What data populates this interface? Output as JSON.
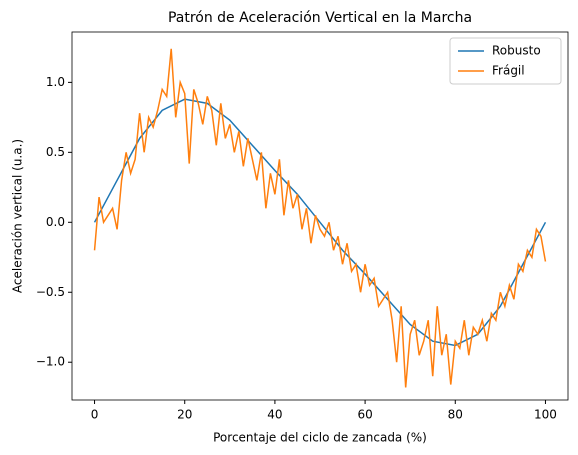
{
  "chart_data": {
    "type": "line",
    "title": "Patrón de Aceleración Vertical en la Marcha",
    "xlabel": "Porcentaje del ciclo de zancada (%)",
    "ylabel": "Aceleración vertical (u.a.)",
    "xlim": [
      -5,
      105
    ],
    "ylim": [
      -1.27,
      1.36
    ],
    "xticks": [
      0,
      20,
      40,
      60,
      80,
      100
    ],
    "yticks": [
      {
        "value": -1.0,
        "label": "−1.0"
      },
      {
        "value": -0.5,
        "label": "−0.5"
      },
      {
        "value": 0,
        "label": "0.0"
      },
      {
        "value": 0.5,
        "label": "0.5"
      },
      {
        "value": 1.0,
        "label": "1.0"
      }
    ],
    "legend": "upper right",
    "series": [
      {
        "name": "Robusto",
        "color": "#1f77b4",
        "x": [
          0,
          5,
          10,
          15,
          20,
          25,
          30,
          35,
          40,
          45,
          50,
          55,
          60,
          65,
          70,
          75,
          80,
          85,
          90,
          95,
          100
        ],
        "values": [
          0,
          0.3,
          0.6,
          0.8,
          0.88,
          0.85,
          0.73,
          0.55,
          0.37,
          0.2,
          0,
          -0.2,
          -0.37,
          -0.55,
          -0.73,
          -0.85,
          -0.88,
          -0.8,
          -0.6,
          -0.3,
          0
        ]
      },
      {
        "name": "Frágil",
        "color": "#ff7f0e",
        "x": [
          0,
          1,
          2,
          3,
          4,
          5,
          6,
          7,
          8,
          9,
          10,
          11,
          12,
          13,
          14,
          15,
          16,
          17,
          18,
          19,
          20,
          21,
          22,
          23,
          24,
          25,
          26,
          27,
          28,
          29,
          30,
          31,
          32,
          33,
          34,
          35,
          36,
          37,
          38,
          39,
          40,
          41,
          42,
          43,
          44,
          45,
          46,
          47,
          48,
          49,
          50,
          51,
          52,
          53,
          54,
          55,
          56,
          57,
          58,
          59,
          60,
          61,
          62,
          63,
          64,
          65,
          66,
          67,
          68,
          69,
          70,
          71,
          72,
          73,
          74,
          75,
          76,
          77,
          78,
          79,
          80,
          81,
          82,
          83,
          84,
          85,
          86,
          87,
          88,
          89,
          90,
          91,
          92,
          93,
          94,
          95,
          96,
          97,
          98,
          99,
          100
        ],
        "values": [
          -0.2,
          0.18,
          0.0,
          0.05,
          0.1,
          -0.05,
          0.3,
          0.5,
          0.35,
          0.45,
          0.78,
          0.5,
          0.75,
          0.68,
          0.8,
          0.95,
          0.9,
          1.24,
          0.75,
          1.0,
          0.92,
          0.42,
          0.95,
          0.85,
          0.7,
          0.9,
          0.8,
          0.55,
          0.85,
          0.6,
          0.7,
          0.5,
          0.65,
          0.4,
          0.6,
          0.45,
          0.3,
          0.5,
          0.1,
          0.35,
          0.2,
          0.45,
          0.05,
          0.3,
          0.1,
          0.2,
          -0.05,
          0.1,
          -0.15,
          0.05,
          -0.05,
          -0.1,
          0.0,
          -0.2,
          -0.1,
          -0.3,
          -0.15,
          -0.35,
          -0.3,
          -0.5,
          -0.3,
          -0.45,
          -0.4,
          -0.6,
          -0.55,
          -0.5,
          -0.7,
          -1.0,
          -0.6,
          -1.18,
          -0.8,
          -0.7,
          -0.95,
          -0.85,
          -0.7,
          -1.1,
          -0.6,
          -0.95,
          -0.8,
          -1.16,
          -0.85,
          -0.9,
          -0.7,
          -0.95,
          -0.75,
          -0.8,
          -0.7,
          -0.85,
          -0.65,
          -0.7,
          -0.5,
          -0.6,
          -0.45,
          -0.55,
          -0.3,
          -0.35,
          -0.2,
          -0.25,
          -0.05,
          -0.1,
          -0.28
        ]
      }
    ]
  }
}
